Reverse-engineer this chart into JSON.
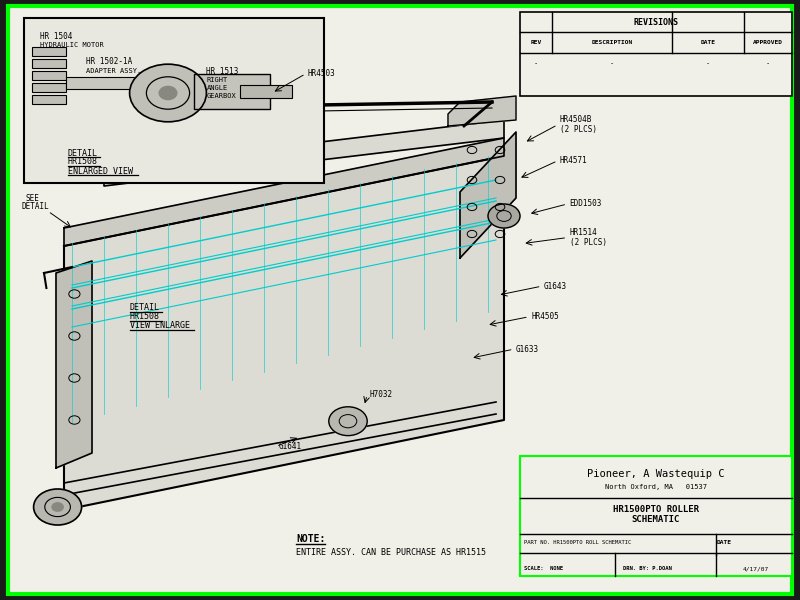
{
  "bg_color": "#1a1a1a",
  "drawing_bg": "#f0f0e8",
  "border_color": "#00ff00",
  "line_color": "#000000",
  "cyan_color": "#00cccc",
  "company": "Pioneer, A Wastequip C",
  "company2": "North Oxford, MA   01537",
  "drawing_title": "HR1500PTO ROLLER\nSCHEMATIC",
  "part_no": "PART NO. HR1500PTO ROLL SCHEMATIC",
  "date_label": "DATE",
  "scale": "SCALE:  NONE",
  "drawn_by": "DRN. BY: P.DOAN",
  "date": "4/17/07",
  "rev_title": "REVISIONS",
  "rev_headers": [
    "REV",
    "DESCRIPTION",
    "DATE",
    "APPROVED"
  ],
  "rev_data": [
    "-",
    "-",
    "-",
    "-"
  ],
  "note": "NOTE:",
  "note_text": "ENTIRE ASSY. CAN BE PURCHASE AS HR1515"
}
